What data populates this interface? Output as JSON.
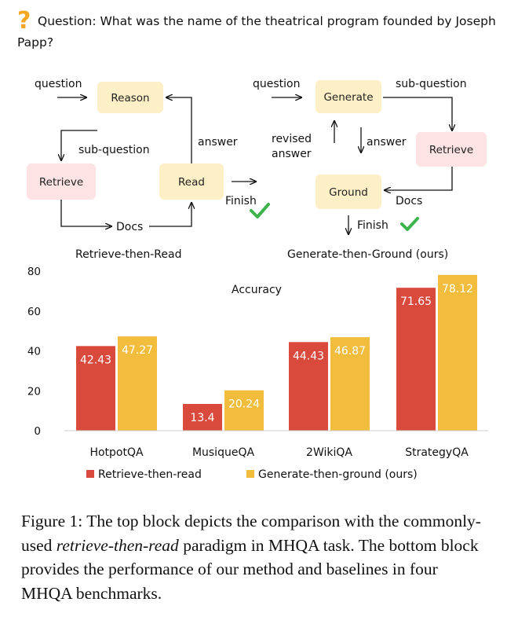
{
  "question": {
    "text": "Question: What was the name of the theatrical program founded by Joseph Papp?",
    "icon": "question-mark-icon"
  },
  "diagram_left": {
    "title": "Retrieve-then-Read",
    "nodes": {
      "reason": "Reason",
      "retrieve": "Retrieve",
      "read": "Read"
    },
    "labels": {
      "question": "question",
      "sub_question": "sub-question",
      "answer": "answer",
      "docs": "Docs",
      "finish": "Finish"
    }
  },
  "diagram_right": {
    "title": "Generate-then-Ground (ours)",
    "nodes": {
      "generate": "Generate",
      "retrieve": "Retrieve",
      "ground": "Ground"
    },
    "labels": {
      "question": "question",
      "sub_question": "sub-question",
      "revised_line1": "revised",
      "revised_line2": "answer",
      "answer": "answer",
      "docs": "Docs",
      "finish": "Finish"
    }
  },
  "colors": {
    "node_yellow": "#fdefc6",
    "node_pink": "#fde3e3",
    "bar_red": "#d9493c",
    "bar_yellow": "#f2bd3d",
    "check_green": "#3cb44b",
    "question_orange": "#f5a623"
  },
  "chart_data": {
    "type": "bar",
    "title": "Accuracy",
    "categories": [
      "HotpotQA",
      "MusiqueQA",
      "2WikiQA",
      "StrategyQA"
    ],
    "series": [
      {
        "name": "Retrieve-then-read",
        "values": [
          42.43,
          13.4,
          44.43,
          71.65
        ]
      },
      {
        "name": "Generate-then-ground (ours)",
        "values": [
          47.27,
          20.24,
          46.87,
          78.12
        ]
      }
    ],
    "value_labels": [
      [
        "42.43",
        "13.4",
        "44.43",
        "71.65"
      ],
      [
        "47.27",
        "20.24",
        "46.87",
        "78.12"
      ]
    ],
    "ylim": [
      0,
      80
    ],
    "yticks": [
      "0",
      "20",
      "40",
      "60",
      "80"
    ],
    "legend_position": "bottom",
    "grid": false
  },
  "caption": {
    "prefix": "Figure 1: The top block depicts the comparison with the commonly-used ",
    "italic": "retrieve-then-read",
    "suffix": " paradigm in MHQA task. The bottom block provides the performance of our method and baselines in four MHQA benchmarks."
  }
}
